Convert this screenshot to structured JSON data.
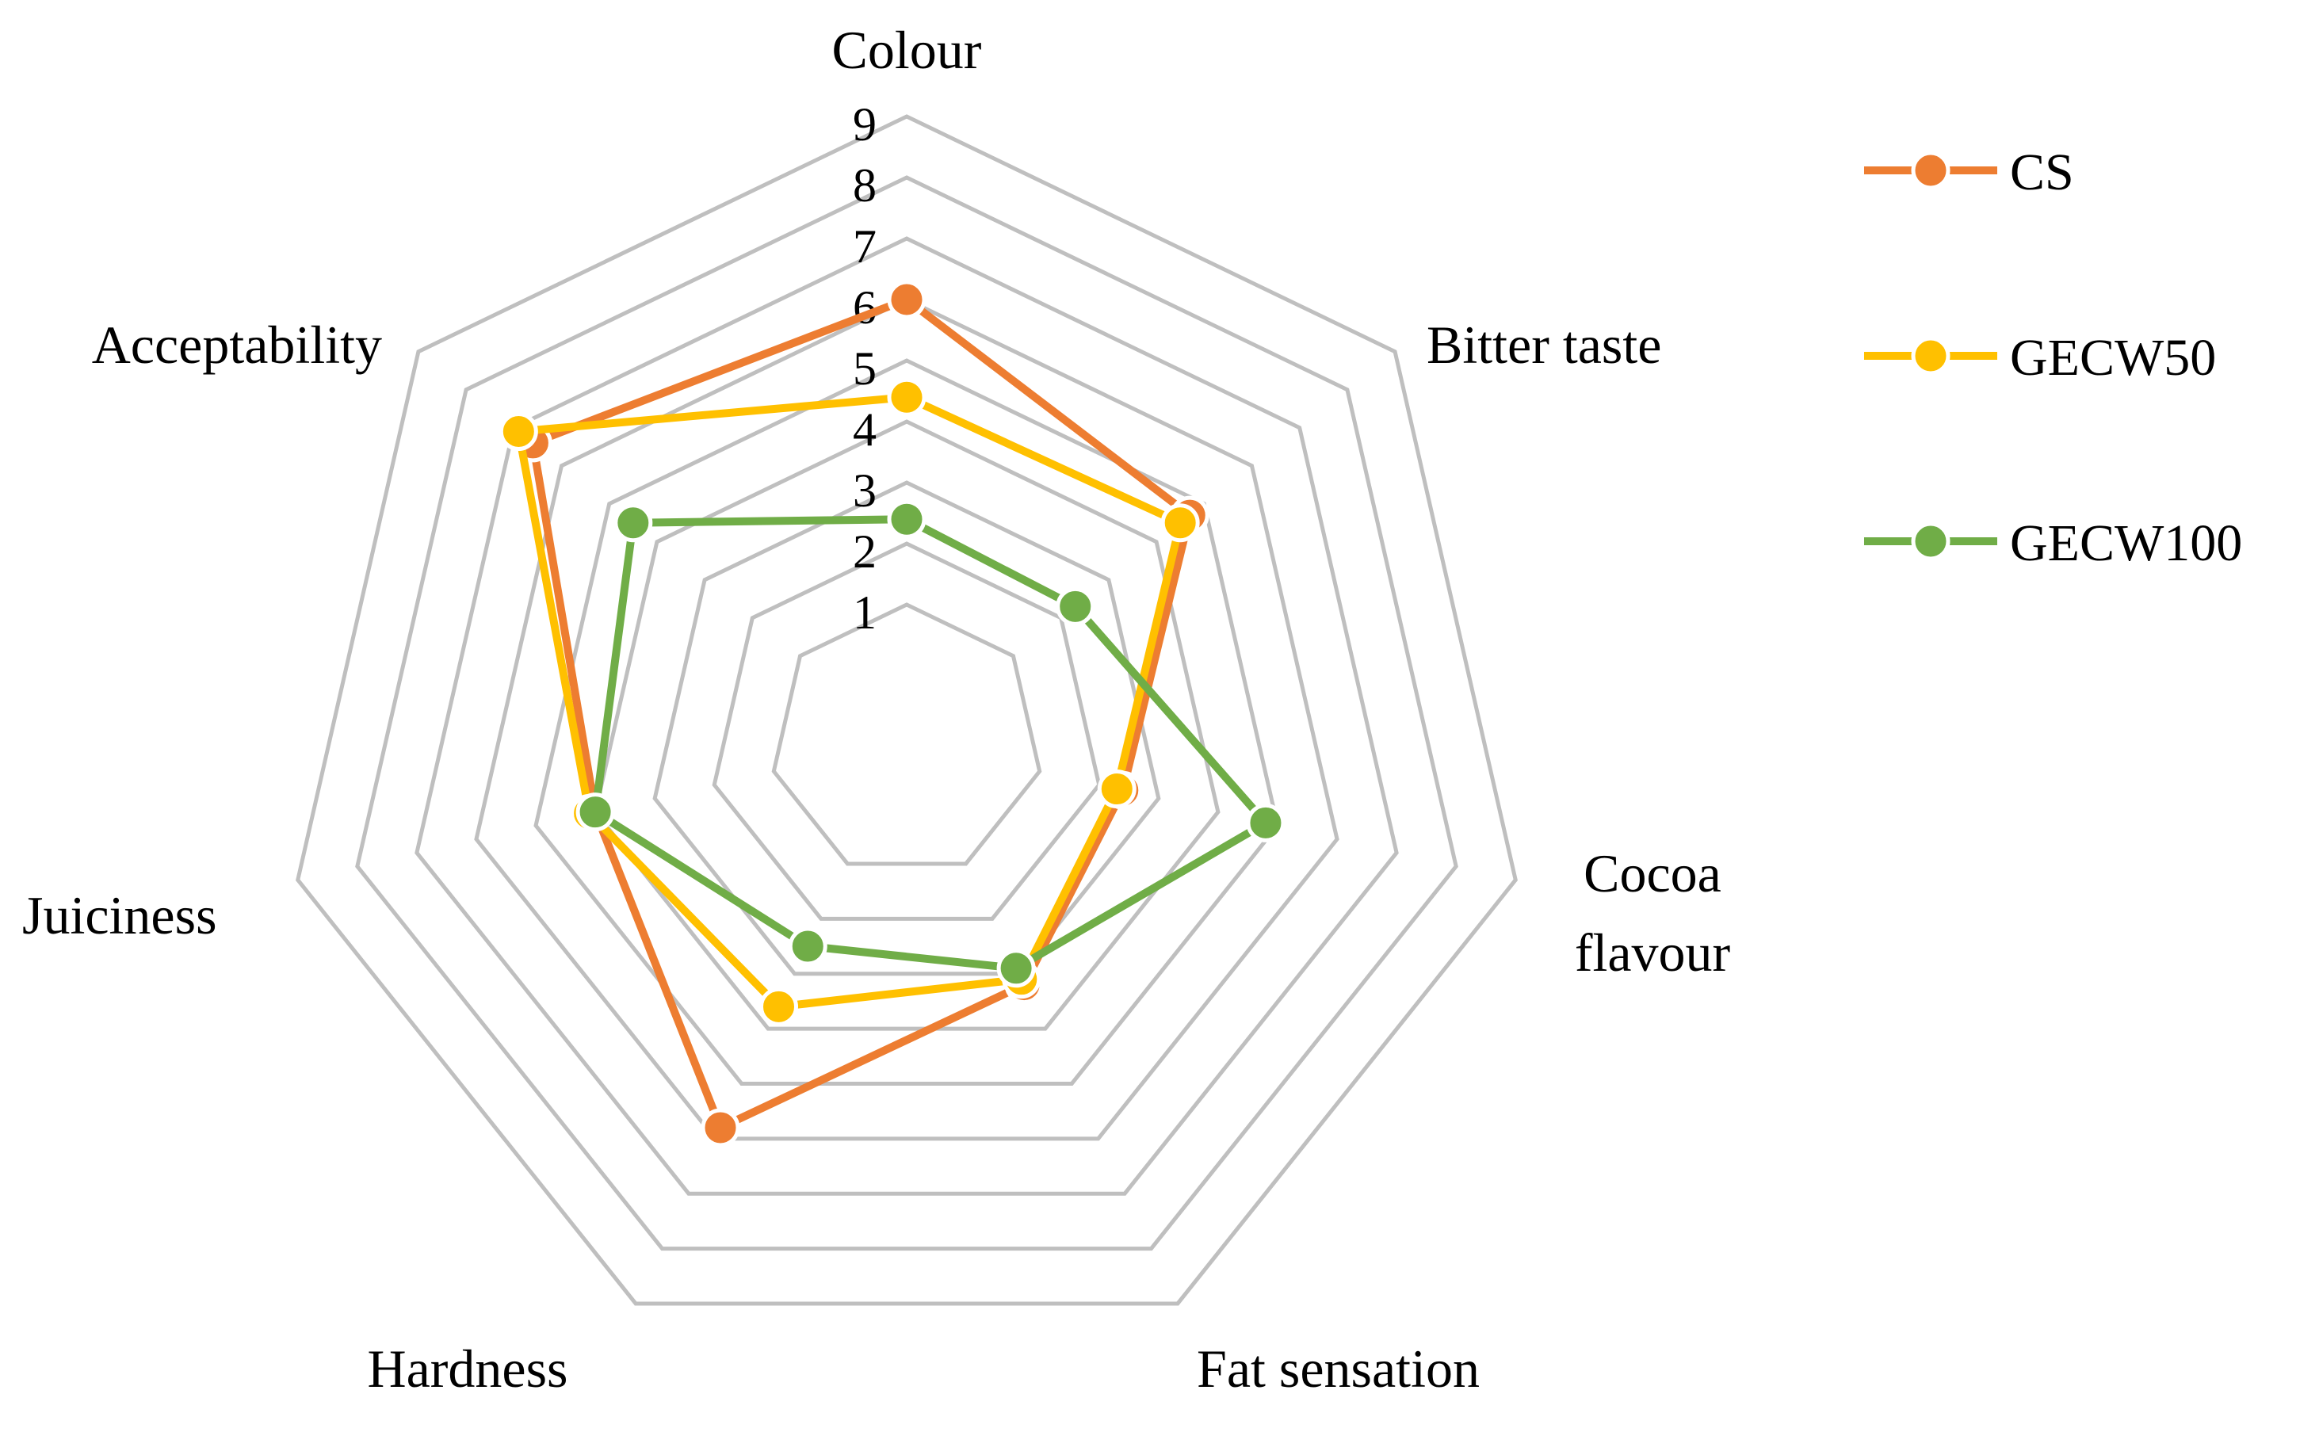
{
  "chart_data": {
    "type": "radar",
    "title": "",
    "axes": [
      "Colour",
      "Bitter taste",
      "Cocoa flavour",
      "Fat sensation",
      "Hardness",
      "Juiciness",
      "Acceptability"
    ],
    "axis_label_lines": [
      [
        "Colour"
      ],
      [
        "Bitter taste"
      ],
      [
        "Cocoa",
        "flavour"
      ],
      [
        "Fat sensation"
      ],
      [
        "Hardness"
      ],
      [
        "Juiciness"
      ],
      [
        "Acceptability"
      ]
    ],
    "rmin": 1,
    "rmax": 9,
    "ticks": [
      1,
      2,
      3,
      4,
      5,
      6,
      7,
      8,
      9
    ],
    "grid": true,
    "legend_position": "right",
    "series": [
      {
        "name": "CS",
        "color": "#ED7D31",
        "values": [
          6.0,
          4.7,
          2.4,
          3.2,
          5.8,
          4.0,
          6.6
        ]
      },
      {
        "name": "GECW50",
        "color": "#FFC000",
        "values": [
          4.4,
          4.5,
          2.3,
          3.1,
          3.6,
          4.1,
          6.9
        ]
      },
      {
        "name": "GECW100",
        "color": "#70AD47",
        "values": [
          2.4,
          2.3,
          4.8,
          2.9,
          2.5,
          4.0,
          4.5
        ]
      }
    ]
  }
}
